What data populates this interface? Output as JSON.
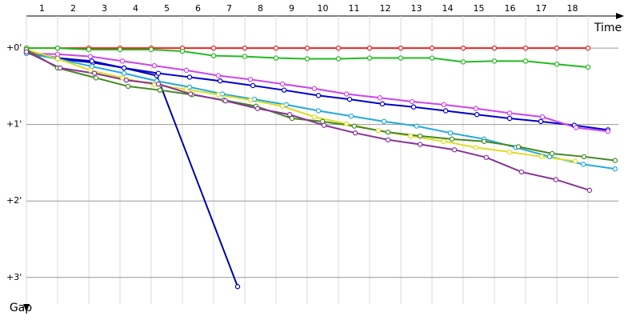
{
  "chart_data": {
    "type": "line",
    "x_label": "Time",
    "y_label": "Gap",
    "xlim": [
      0,
      19.25
    ],
    "ylim": [
      -0.42,
      3.4
    ],
    "xticks": [
      {
        "value": 0.5,
        "label": "1"
      },
      {
        "value": 1.5,
        "label": "2"
      },
      {
        "value": 2.5,
        "label": "3"
      },
      {
        "value": 3.5,
        "label": "4"
      },
      {
        "value": 4.5,
        "label": "5"
      },
      {
        "value": 5.5,
        "label": "6"
      },
      {
        "value": 6.5,
        "label": "7"
      },
      {
        "value": 7.5,
        "label": "8"
      },
      {
        "value": 8.5,
        "label": "9"
      },
      {
        "value": 9.5,
        "label": "10"
      },
      {
        "value": 10.5,
        "label": "11"
      },
      {
        "value": 11.5,
        "label": "12"
      },
      {
        "value": 12.5,
        "label": "13"
      },
      {
        "value": 13.5,
        "label": "14"
      },
      {
        "value": 14.5,
        "label": "15"
      },
      {
        "value": 15.5,
        "label": "16"
      },
      {
        "value": 16.5,
        "label": "17"
      },
      {
        "value": 17.5,
        "label": "18"
      }
    ],
    "yticks": [
      {
        "value": 0,
        "label": "+0'"
      },
      {
        "value": 1,
        "label": "+1'"
      },
      {
        "value": 2,
        "label": "+2'"
      },
      {
        "value": 3,
        "label": "+3'"
      }
    ],
    "grid": true,
    "y_inverted": true,
    "series": [
      {
        "color": "#ee2222",
        "x": [
          0,
          1,
          2,
          3,
          4,
          5,
          6,
          7,
          8,
          9,
          10,
          11,
          12,
          13,
          14,
          15,
          16,
          17,
          18
        ],
        "values": [
          0,
          0,
          0,
          0,
          0,
          0,
          0,
          0,
          0,
          0,
          0,
          0,
          0,
          0,
          0,
          0,
          0,
          0,
          0
        ]
      },
      {
        "color": "#22bb22",
        "x": [
          0,
          1,
          2,
          3,
          4,
          5,
          6,
          7,
          8,
          9,
          10,
          11,
          12,
          13,
          14,
          15,
          16,
          17,
          18
        ],
        "values": [
          0,
          0,
          0.02,
          0.02,
          0.02,
          0.04,
          0.1,
          0.11,
          0.13,
          0.14,
          0.14,
          0.13,
          0.13,
          0.13,
          0.18,
          0.17,
          0.17,
          0.21,
          0.25
        ]
      },
      {
        "color": "#0000aa",
        "x": [
          0,
          1,
          2.13,
          3.13,
          4.18,
          6.77
        ],
        "values": [
          0.06,
          0.14,
          0.19,
          0.26,
          0.36,
          3.12
        ]
      },
      {
        "color": "#0000cc",
        "x": [
          0,
          1,
          2.1,
          3.13,
          4.23,
          5.23,
          6.21,
          7.26,
          8.26,
          9.36,
          10.36,
          11.41,
          12.41,
          13.44,
          14.44,
          15.49,
          16.49,
          17.56,
          18.64
        ],
        "values": [
          0.04,
          0.13,
          0.17,
          0.26,
          0.33,
          0.38,
          0.43,
          0.49,
          0.55,
          0.62,
          0.67,
          0.73,
          0.77,
          0.82,
          0.87,
          0.92,
          0.96,
          1.01,
          1.07
        ]
      },
      {
        "color": "#cc44ee",
        "x": [
          0,
          1,
          2.05,
          3.08,
          4.1,
          5.13,
          6.15,
          7.18,
          8.21,
          9.23,
          10.26,
          11.33,
          12.36,
          13.38,
          14.41,
          15.49,
          16.54,
          17.62,
          18.64
        ],
        "values": [
          0.07,
          0.08,
          0.11,
          0.17,
          0.23,
          0.29,
          0.36,
          0.41,
          0.47,
          0.53,
          0.6,
          0.65,
          0.7,
          0.74,
          0.79,
          0.85,
          0.9,
          1.04,
          1.09
        ]
      },
      {
        "color": "#22aadd",
        "x": [
          0,
          1,
          2.1,
          3.13,
          4.18,
          5.23,
          6.28,
          7.31,
          8.33,
          9.36,
          10.41,
          11.46,
          12.51,
          13.59,
          14.67,
          15.69,
          16.77,
          17.85,
          18.87
        ],
        "values": [
          0.07,
          0.14,
          0.24,
          0.33,
          0.43,
          0.51,
          0.6,
          0.67,
          0.74,
          0.82,
          0.89,
          0.96,
          1.02,
          1.11,
          1.19,
          1.3,
          1.42,
          1.52,
          1.58
        ]
      },
      {
        "color": "#dddd22",
        "x": [
          0,
          1,
          2.05,
          3.08,
          4.1,
          5.13,
          6.15,
          7.18,
          8.21,
          9.23,
          10.26,
          11.28,
          12.31,
          13.38,
          14.41,
          15.49,
          16.51,
          17.59
        ],
        "values": [
          0.02,
          0.14,
          0.29,
          0.39,
          0.48,
          0.54,
          0.61,
          0.68,
          0.76,
          0.9,
          0.99,
          1.08,
          1.15,
          1.22,
          1.3,
          1.36,
          1.42,
          1.48
        ]
      },
      {
        "color": "#448822",
        "x": [
          0,
          1,
          2.23,
          3.26,
          4.28,
          5.31,
          6.33,
          7.36,
          8.51,
          9.49,
          10.51,
          11.59,
          12.62,
          13.64,
          14.67,
          15.77,
          16.85,
          17.87,
          18.87
        ],
        "values": [
          0.02,
          0.26,
          0.39,
          0.5,
          0.55,
          0.61,
          0.68,
          0.76,
          0.92,
          0.96,
          1.02,
          1.1,
          1.15,
          1.19,
          1.22,
          1.29,
          1.38,
          1.42,
          1.47
        ]
      },
      {
        "color": "#883399",
        "x": [
          0,
          1.08,
          2.18,
          3.2,
          4.23,
          5.26,
          6.38,
          7.41,
          8.44,
          9.54,
          10.54,
          11.59,
          12.62,
          13.72,
          14.74,
          15.87,
          16.97,
          18.05
        ],
        "values": [
          0.05,
          0.26,
          0.33,
          0.42,
          0.47,
          0.6,
          0.69,
          0.79,
          0.87,
          1.01,
          1.11,
          1.2,
          1.26,
          1.33,
          1.43,
          1.62,
          1.72,
          1.86
        ]
      }
    ]
  }
}
